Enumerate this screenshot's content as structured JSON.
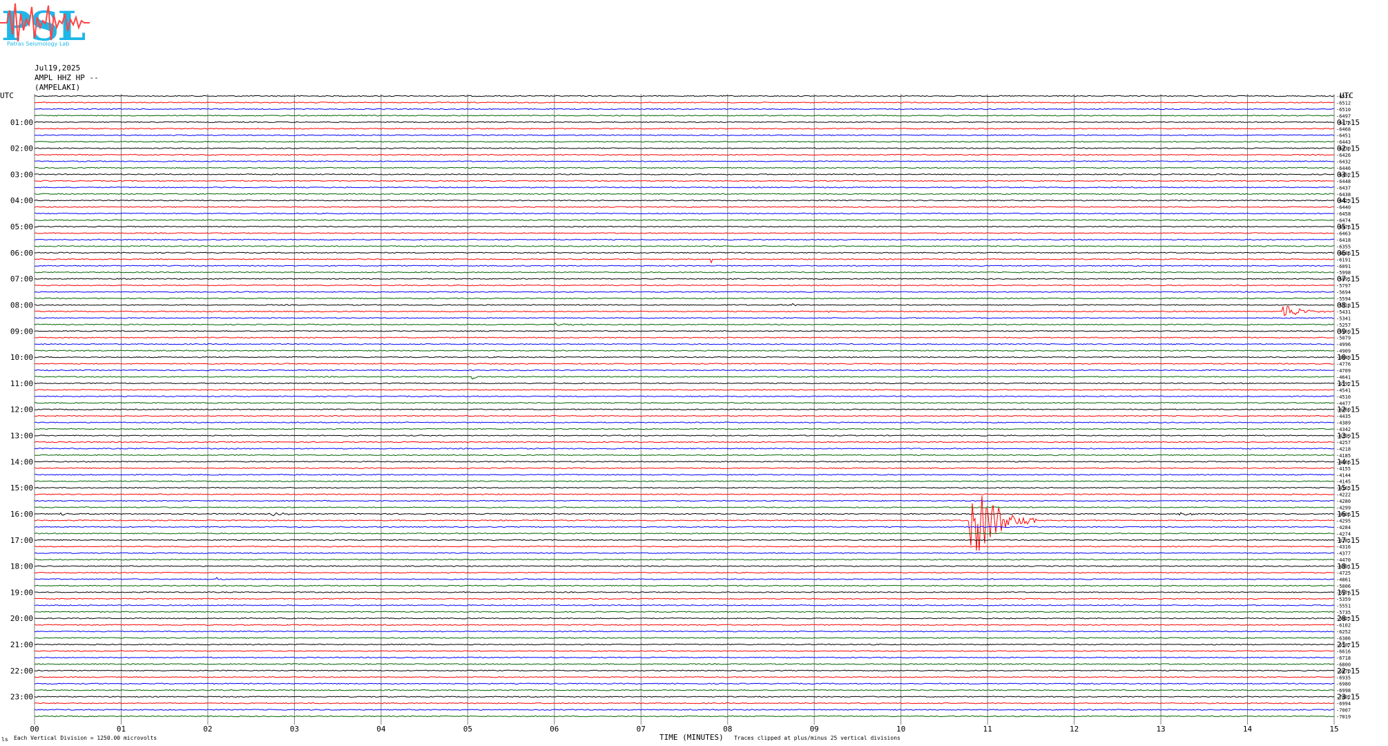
{
  "header": {
    "logo_text": "PSL",
    "logo_subtitle": "Patras Seismology Lab",
    "date": "Jul19,2025",
    "station_line": "AMPL HHZ HP --",
    "station_name": "(AMPELAKI)"
  },
  "footer": {
    "vertical_division": "Each Vertical Division = 1250.00 microvolts",
    "clip_note": "Traces clipped at plus/minus 25 vertical divisions",
    "corner_mark": "ls"
  },
  "colors": {
    "trace_cycle": [
      "#000000",
      "#ff0000",
      "#0000ff",
      "#006400"
    ],
    "grid": "#808080",
    "logo_cyan": "#1fb7e8",
    "logo_red": "#ff4444"
  },
  "chart_data": {
    "type": "line",
    "title": "",
    "xlabel": "TIME (MINUTES)",
    "ylabel": "",
    "left_axis_label": "UTC",
    "right_axis_label": "UTC",
    "x_ticks": [
      "00",
      "01",
      "02",
      "03",
      "04",
      "05",
      "06",
      "07",
      "08",
      "09",
      "10",
      "11",
      "12",
      "13",
      "14",
      "15"
    ],
    "xlim": [
      0,
      15
    ],
    "left_hour_labels": [
      "01:00",
      "02:00",
      "03:00",
      "04:00",
      "05:00",
      "06:00",
      "07:00",
      "08:00",
      "09:00",
      "10:00",
      "11:00",
      "12:00",
      "13:00",
      "14:00",
      "15:00",
      "16:00",
      "17:00",
      "18:00",
      "19:00",
      "20:00",
      "21:00",
      "22:00",
      "23:00"
    ],
    "right_hour_labels": [
      "01:15",
      "02:15",
      "03:15",
      "04:15",
      "05:15",
      "06:15",
      "07:15",
      "08:15",
      "09:15",
      "10:15",
      "11:15",
      "12:15",
      "13:15",
      "14:15",
      "15:15",
      "16:15",
      "17:15",
      "18:15",
      "19:15",
      "20:15",
      "21:15",
      "22:15",
      "23:15"
    ],
    "trace_offsets": [
      "-6527",
      "-6512",
      "-6510",
      "-6497",
      "-6478",
      "-6468",
      "-6451",
      "-6443",
      "-6430",
      "-6426",
      "-6432",
      "-6446",
      "-6452",
      "-6448",
      "-6437",
      "-6438",
      "-6423",
      "-6440",
      "-6458",
      "-6474",
      "-6476",
      "-6463",
      "-6418",
      "-6355",
      "-6286",
      "-6191",
      "-6091",
      "-5998",
      "-5891",
      "-5797",
      "-5694",
      "-5594",
      "-5518",
      "-5431",
      "-5341",
      "-5257",
      "-5169",
      "-5079",
      "-4996",
      "-4909",
      "-4849",
      "-4776",
      "-4709",
      "-4641",
      "-4592",
      "-4541",
      "-4510",
      "-4477",
      "-4460",
      "-4435",
      "-4389",
      "-4342",
      "-4299",
      "-4257",
      "-4218",
      "-4185",
      "-4166",
      "-4155",
      "-4144",
      "-4145",
      "-4163",
      "-4222",
      "-4280",
      "-4299",
      "-4306",
      "-4295",
      "-4284",
      "-4274",
      "-4281",
      "-4316",
      "-4377",
      "-4470",
      "-4591",
      "-4725",
      "-4861",
      "-5006",
      "-5176",
      "-5359",
      "-5551",
      "-5735",
      "-5925",
      "-6102",
      "-6252",
      "-6386",
      "-6507",
      "-6616",
      "-6718",
      "-6800",
      "-6870",
      "-6935",
      "-6980",
      "-6998",
      "-7002",
      "-6994",
      "-7007",
      "-7019"
    ],
    "events": [
      {
        "trace": 25,
        "minute": 7.8,
        "amp": 6,
        "dur": 0.15
      },
      {
        "trace": 33,
        "minute": 14.4,
        "amp": 14,
        "dur": 0.5
      },
      {
        "trace": 33,
        "minute": 9.15,
        "amp": 3,
        "dur": 0.1
      },
      {
        "trace": 32,
        "minute": 8.75,
        "amp": 3,
        "dur": 0.1
      },
      {
        "trace": 35,
        "minute": 6.0,
        "amp": 3,
        "dur": 0.4
      },
      {
        "trace": 39,
        "minute": 0.55,
        "amp": 3,
        "dur": 0.1
      },
      {
        "trace": 43,
        "minute": 5.05,
        "amp": 4,
        "dur": 0.1
      },
      {
        "trace": 65,
        "minute": 10.78,
        "amp": 70,
        "dur": 0.8
      },
      {
        "trace": 64,
        "minute": 0.3,
        "amp": 3,
        "dur": 0.2
      },
      {
        "trace": 64,
        "minute": 2.7,
        "amp": 3,
        "dur": 0.5
      },
      {
        "trace": 64,
        "minute": 13.2,
        "amp": 3,
        "dur": 0.5
      },
      {
        "trace": 74,
        "minute": 2.1,
        "amp": 3,
        "dur": 0.1
      }
    ]
  }
}
